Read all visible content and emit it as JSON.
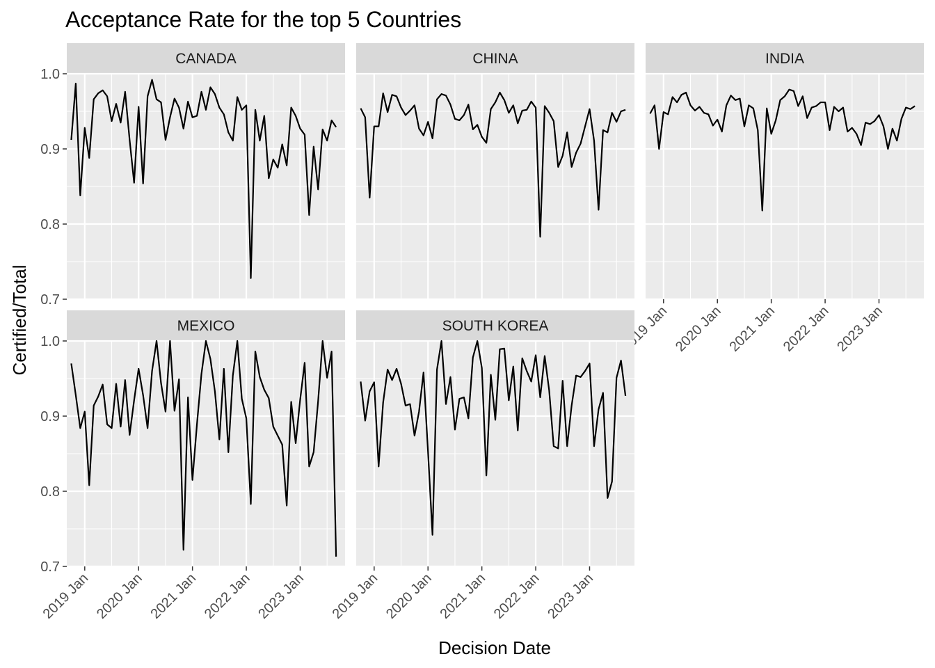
{
  "chart_data": {
    "type": "line",
    "title": "Acceptance Rate for the top 5 Countries",
    "xlabel": "Decision Date",
    "ylabel": "Certified/Total",
    "ylim": [
      0.7,
      1.0
    ],
    "y_ticks": [
      0.7,
      0.8,
      0.9,
      1.0
    ],
    "y_tick_labels": [
      "0.7",
      "0.8",
      "0.9",
      "1.0"
    ],
    "x_ticks": [
      "2019-01",
      "2020-01",
      "2021-01",
      "2022-01",
      "2023-01"
    ],
    "x_tick_labels": [
      "2019 Jan",
      "2020 Jan",
      "2021 Jan",
      "2022 Jan",
      "2023 Jan"
    ],
    "x_range": [
      "2018-09",
      "2023-11"
    ],
    "grid": true,
    "line_color": "#000000",
    "panel_color": "#ebebeb",
    "strip_color": "#d9d9d9",
    "panels": [
      {
        "name": "CANADA",
        "start": "2018-10",
        "values": [
          0.912,
          0.987,
          0.838,
          0.928,
          0.888,
          0.966,
          0.974,
          0.978,
          0.97,
          0.937,
          0.96,
          0.935,
          0.976,
          0.912,
          0.855,
          0.956,
          0.854,
          0.97,
          0.992,
          0.966,
          0.962,
          0.912,
          0.942,
          0.967,
          0.955,
          0.927,
          0.963,
          0.942,
          0.944,
          0.976,
          0.952,
          0.982,
          0.973,
          0.955,
          0.946,
          0.922,
          0.911,
          0.969,
          0.952,
          0.958,
          0.728,
          0.952,
          0.911,
          0.944,
          0.861,
          0.886,
          0.875,
          0.906,
          0.878,
          0.955,
          0.944,
          0.927,
          0.919,
          0.812,
          0.903,
          0.846,
          0.926,
          0.911,
          0.938,
          0.929
        ]
      },
      {
        "name": "CHINA",
        "start": "2018-10",
        "values": [
          0.954,
          0.942,
          0.835,
          0.93,
          0.93,
          0.974,
          0.949,
          0.972,
          0.97,
          0.955,
          0.945,
          0.951,
          0.958,
          0.927,
          0.918,
          0.936,
          0.914,
          0.966,
          0.973,
          0.971,
          0.959,
          0.94,
          0.938,
          0.945,
          0.959,
          0.926,
          0.932,
          0.916,
          0.908,
          0.953,
          0.962,
          0.975,
          0.965,
          0.948,
          0.958,
          0.934,
          0.951,
          0.952,
          0.963,
          0.955,
          0.783,
          0.957,
          0.948,
          0.937,
          0.876,
          0.891,
          0.922,
          0.876,
          0.895,
          0.907,
          0.93,
          0.953,
          0.911,
          0.819,
          0.925,
          0.922,
          0.948,
          0.936,
          0.95,
          0.952
        ]
      },
      {
        "name": "INDIA",
        "start": "2018-10",
        "values": [
          0.947,
          0.958,
          0.9,
          0.949,
          0.946,
          0.969,
          0.962,
          0.972,
          0.975,
          0.958,
          0.951,
          0.956,
          0.948,
          0.946,
          0.931,
          0.939,
          0.923,
          0.958,
          0.971,
          0.965,
          0.967,
          0.93,
          0.958,
          0.954,
          0.925,
          0.818,
          0.954,
          0.92,
          0.938,
          0.965,
          0.97,
          0.979,
          0.977,
          0.957,
          0.97,
          0.941,
          0.955,
          0.957,
          0.962,
          0.962,
          0.925,
          0.956,
          0.95,
          0.955,
          0.923,
          0.928,
          0.92,
          0.905,
          0.935,
          0.933,
          0.937,
          0.945,
          0.93,
          0.9,
          0.927,
          0.911,
          0.94,
          0.955,
          0.953,
          0.957
        ]
      },
      {
        "name": "MEXICO",
        "start": "2018-10",
        "values": [
          0.97,
          0.928,
          0.884,
          0.906,
          0.808,
          0.914,
          0.926,
          0.942,
          0.889,
          0.884,
          0.943,
          0.886,
          0.948,
          0.875,
          0.921,
          0.963,
          0.928,
          0.884,
          0.96,
          1.0,
          0.944,
          0.906,
          1.0,
          0.907,
          0.949,
          0.722,
          0.925,
          0.815,
          0.889,
          0.956,
          1.0,
          0.976,
          0.933,
          0.869,
          0.963,
          0.852,
          0.954,
          1.0,
          0.923,
          0.897,
          0.783,
          0.986,
          0.952,
          0.935,
          0.924,
          0.886,
          0.874,
          0.862,
          0.781,
          0.919,
          0.864,
          0.922,
          0.971,
          0.833,
          0.852,
          0.92,
          1.0,
          0.951,
          0.986,
          0.713
        ]
      },
      {
        "name": "SOUTH KOREA",
        "start": "2018-10",
        "values": [
          0.946,
          0.894,
          0.933,
          0.945,
          0.833,
          0.918,
          0.962,
          0.948,
          0.963,
          0.943,
          0.914,
          0.916,
          0.874,
          0.906,
          0.958,
          0.853,
          0.742,
          0.962,
          1.0,
          0.916,
          0.952,
          0.882,
          0.923,
          0.925,
          0.897,
          0.978,
          1.0,
          0.964,
          0.821,
          0.955,
          0.895,
          0.989,
          0.99,
          0.921,
          0.966,
          0.881,
          0.977,
          0.96,
          0.946,
          0.981,
          0.925,
          0.98,
          0.934,
          0.86,
          0.857,
          0.947,
          0.86,
          0.914,
          0.954,
          0.952,
          0.96,
          0.97,
          0.86,
          0.909,
          0.931,
          0.791,
          0.813,
          0.951,
          0.974,
          0.927
        ]
      }
    ]
  }
}
